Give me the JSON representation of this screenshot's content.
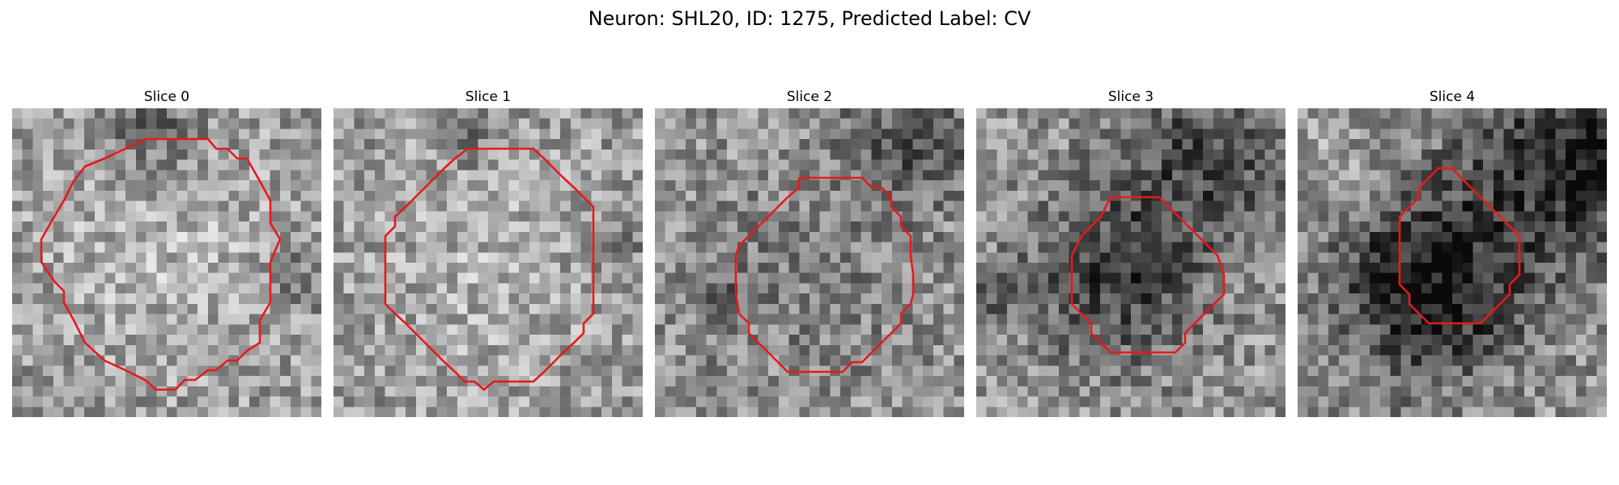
{
  "figure": {
    "title": "Neuron: SHL20, ID: 1275, Predicted Label: CV"
  },
  "colors": {
    "contour": "#e8191b",
    "background": "#ffffff"
  },
  "slices": [
    {
      "title": "Slice 0"
    },
    {
      "title": "Slice 1"
    },
    {
      "title": "Slice 2"
    },
    {
      "title": "Slice 3"
    },
    {
      "title": "Slice 4"
    }
  ]
}
